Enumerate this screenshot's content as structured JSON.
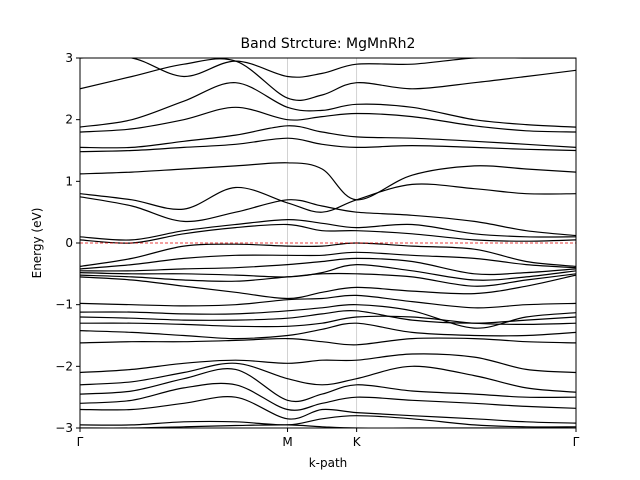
{
  "chart_data": {
    "type": "line",
    "title": "Band Strcture: MgMnRh2",
    "xlabel": "k-path",
    "ylabel": "Energy (eV)",
    "ylim": [
      -3,
      3
    ],
    "yticks": [
      -3,
      -2,
      -1,
      0,
      1,
      2,
      3
    ],
    "ytick_labels": [
      "−3",
      "−2",
      "−1",
      "0",
      "1",
      "2",
      "3"
    ],
    "kpoints": [
      {
        "label": "Γ",
        "position": 0.0
      },
      {
        "label": "M",
        "position": 1.0
      },
      {
        "label": "K",
        "position": 1.333
      },
      {
        "label": "Γ",
        "position": 2.39
      }
    ],
    "fermi_level": {
      "energy": 0.0,
      "color": "#e00000",
      "style": "dashed"
    },
    "grid": "vertical lines at high-symmetry points",
    "line_color": "#000000",
    "x": [
      0.0,
      0.25,
      0.5,
      0.75,
      1.0,
      1.1667,
      1.333,
      1.6,
      1.9,
      2.15,
      2.39
    ],
    "series": [
      {
        "values": [
          -3.0,
          -3.0,
          -2.98,
          -2.96,
          -2.95,
          -2.98,
          -3.0,
          -3.0,
          -3.0,
          -3.0,
          -3.0
        ]
      },
      {
        "values": [
          -2.95,
          -2.95,
          -2.9,
          -2.9,
          -2.95,
          -2.85,
          -2.8,
          -2.85,
          -2.95,
          -2.98,
          -2.98
        ]
      },
      {
        "values": [
          -2.7,
          -2.7,
          -2.6,
          -2.5,
          -2.85,
          -2.7,
          -2.75,
          -2.8,
          -2.85,
          -2.9,
          -2.92
        ]
      },
      {
        "values": [
          -2.6,
          -2.55,
          -2.35,
          -2.3,
          -2.7,
          -2.6,
          -2.5,
          -2.55,
          -2.6,
          -2.65,
          -2.68
        ]
      },
      {
        "values": [
          -2.45,
          -2.4,
          -2.2,
          -2.05,
          -2.55,
          -2.45,
          -2.3,
          -2.4,
          -2.45,
          -2.5,
          -2.5
        ]
      },
      {
        "values": [
          -2.3,
          -2.25,
          -2.1,
          -1.95,
          -2.2,
          -2.3,
          -2.2,
          -2.0,
          -2.15,
          -2.35,
          -2.42
        ]
      },
      {
        "values": [
          -2.1,
          -2.05,
          -1.95,
          -1.9,
          -1.95,
          -1.9,
          -1.9,
          -1.8,
          -1.85,
          -2.05,
          -2.1
        ]
      },
      {
        "values": [
          -1.62,
          -1.6,
          -1.6,
          -1.58,
          -1.55,
          -1.6,
          -1.65,
          -1.55,
          -1.55,
          -1.6,
          -1.62
        ]
      },
      {
        "values": [
          -1.42,
          -1.45,
          -1.5,
          -1.55,
          -1.5,
          -1.4,
          -1.3,
          -1.45,
          -1.5,
          -1.5,
          -1.45
        ]
      },
      {
        "values": [
          -1.3,
          -1.3,
          -1.32,
          -1.35,
          -1.35,
          -1.3,
          -1.2,
          -1.2,
          -1.3,
          -1.32,
          -1.3
        ]
      },
      {
        "values": [
          -1.2,
          -1.22,
          -1.25,
          -1.25,
          -1.22,
          -1.15,
          -1.1,
          -1.25,
          -1.3,
          -1.25,
          -1.2
        ]
      },
      {
        "values": [
          -1.12,
          -1.12,
          -1.15,
          -1.15,
          -1.1,
          -1.05,
          -1.0,
          -1.1,
          -1.38,
          -1.2,
          -1.13
        ]
      },
      {
        "values": [
          -0.98,
          -1.0,
          -1.02,
          -1.0,
          -0.92,
          -0.9,
          -0.85,
          -0.95,
          -1.05,
          -1.0,
          -0.98
        ]
      },
      {
        "values": [
          -0.55,
          -0.6,
          -0.7,
          -0.8,
          -0.9,
          -0.8,
          -0.72,
          -0.78,
          -0.82,
          -0.7,
          -0.52
        ]
      },
      {
        "values": [
          -0.52,
          -0.55,
          -0.6,
          -0.62,
          -0.55,
          -0.5,
          -0.5,
          -0.55,
          -0.7,
          -0.6,
          -0.5
        ]
      },
      {
        "values": [
          -0.48,
          -0.5,
          -0.5,
          -0.52,
          -0.55,
          -0.48,
          -0.35,
          -0.45,
          -0.6,
          -0.55,
          -0.45
        ]
      },
      {
        "values": [
          -0.45,
          -0.45,
          -0.42,
          -0.4,
          -0.35,
          -0.3,
          -0.25,
          -0.3,
          -0.5,
          -0.48,
          -0.42
        ]
      },
      {
        "values": [
          -0.42,
          -0.35,
          -0.25,
          -0.2,
          -0.2,
          -0.2,
          -0.15,
          -0.2,
          -0.25,
          -0.35,
          -0.4
        ]
      },
      {
        "values": [
          -0.38,
          -0.25,
          -0.05,
          -0.02,
          -0.05,
          -0.05,
          0.0,
          -0.05,
          -0.1,
          -0.3,
          -0.38
        ]
      },
      {
        "values": [
          0.05,
          0.0,
          0.15,
          0.25,
          0.3,
          0.2,
          0.2,
          0.15,
          0.05,
          0.03,
          0.05
        ]
      },
      {
        "values": [
          0.1,
          0.05,
          0.2,
          0.3,
          0.38,
          0.32,
          0.25,
          0.3,
          0.15,
          0.1,
          0.1
        ]
      },
      {
        "values": [
          0.75,
          0.6,
          0.35,
          0.5,
          0.7,
          0.6,
          0.5,
          0.45,
          0.35,
          0.2,
          0.12
        ]
      },
      {
        "values": [
          0.8,
          0.7,
          0.55,
          0.9,
          0.65,
          0.5,
          0.7,
          0.95,
          0.88,
          0.8,
          0.8
        ]
      },
      {
        "values": [
          1.12,
          1.15,
          1.2,
          1.25,
          1.3,
          1.2,
          0.7,
          1.1,
          1.25,
          1.2,
          1.15
        ]
      },
      {
        "values": [
          1.48,
          1.5,
          1.55,
          1.6,
          1.7,
          1.6,
          1.55,
          1.58,
          1.55,
          1.52,
          1.5
        ]
      },
      {
        "values": [
          1.55,
          1.55,
          1.65,
          1.75,
          1.9,
          1.8,
          1.72,
          1.7,
          1.65,
          1.6,
          1.55
        ]
      },
      {
        "values": [
          1.8,
          1.85,
          2.0,
          2.2,
          2.0,
          2.05,
          2.1,
          2.05,
          1.9,
          1.82,
          1.8
        ]
      },
      {
        "values": [
          1.88,
          2.0,
          2.3,
          2.6,
          2.2,
          2.15,
          2.25,
          2.2,
          2.0,
          1.92,
          1.88
        ]
      },
      {
        "values": [
          2.5,
          2.7,
          2.9,
          2.95,
          2.35,
          2.4,
          2.6,
          2.5,
          2.6,
          2.7,
          2.8
        ]
      },
      {
        "values": [
          3.0,
          3.0,
          2.7,
          2.95,
          2.7,
          2.75,
          2.9,
          2.9,
          3.0,
          3.0,
          3.0
        ]
      }
    ]
  }
}
